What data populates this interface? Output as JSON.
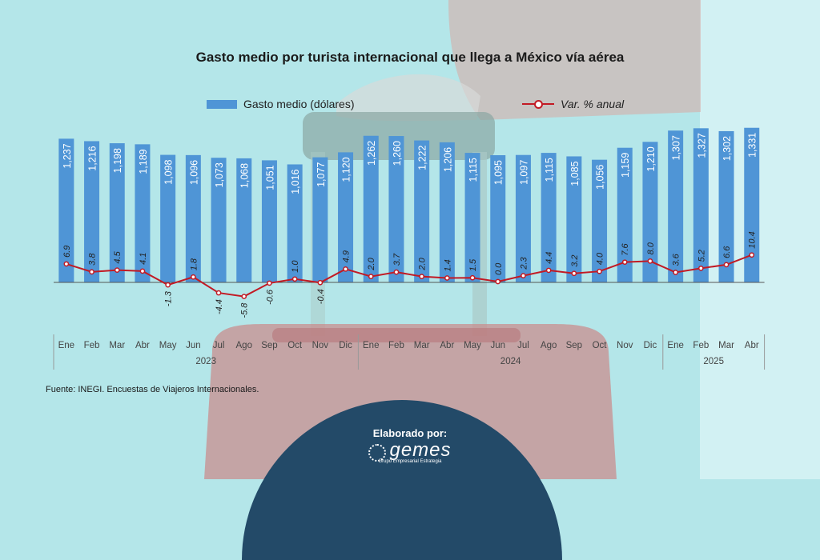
{
  "title": "Gasto medio por turista internacional que llega a México vía aérea",
  "legend": {
    "bars": "Gasto medio (dólares)",
    "line": "Var. % anual"
  },
  "source": "Fuente: INEGI. Encuestas de Viajeros Internacionales.",
  "footer": {
    "elaborado": "Elaborado por:",
    "logo": "gemes",
    "logo_sub": "Grupo Empresarial Estrategia"
  },
  "colors": {
    "bar": "#4f95d6",
    "line": "#c21a24",
    "background": "#b4e6e9",
    "badge": "#234a68"
  },
  "chart_data": {
    "type": "bar",
    "title": "Gasto medio por turista internacional que llega a México vía aérea",
    "categories": [
      "Ene",
      "Feb",
      "Mar",
      "Abr",
      "May",
      "Jun",
      "Jul",
      "Ago",
      "Sep",
      "Oct",
      "Nov",
      "Dic",
      "Ene",
      "Feb",
      "Mar",
      "Abr",
      "May",
      "Jun",
      "Jul",
      "Ago",
      "Sep",
      "Oct",
      "Nov",
      "Dic",
      "Ene",
      "Feb",
      "Mar",
      "Abr"
    ],
    "years": [
      {
        "label": "2023",
        "start": 0,
        "end": 11
      },
      {
        "label": "2024",
        "start": 12,
        "end": 23
      },
      {
        "label": "2025",
        "start": 24,
        "end": 27
      }
    ],
    "series": [
      {
        "name": "Gasto medio (dólares)",
        "type": "bar",
        "values": [
          1237,
          1216,
          1198,
          1189,
          1098,
          1096,
          1073,
          1068,
          1051,
          1016,
          1077,
          1120,
          1262,
          1260,
          1222,
          1206,
          1115,
          1095,
          1097,
          1115,
          1085,
          1056,
          1159,
          1210,
          1307,
          1327,
          1302,
          1331
        ],
        "labels": [
          "1,237",
          "1,216",
          "1,198",
          "1,189",
          "1,098",
          "1,096",
          "1,073",
          "1,068",
          "1,051",
          "1,016",
          "1,077",
          "1,120",
          "1,262",
          "1,260",
          "1,222",
          "1,206",
          "1,115",
          "1,095",
          "1,097",
          "1,115",
          "1,085",
          "1,056",
          "1,159",
          "1,210",
          "1,307",
          "1,327",
          "1,302",
          "1,331"
        ]
      },
      {
        "name": "Var. % anual",
        "type": "line",
        "values": [
          6.9,
          3.8,
          4.5,
          4.1,
          -1.3,
          1.8,
          -4.4,
          -5.8,
          -0.6,
          1.0,
          -0.4,
          4.9,
          2.0,
          3.7,
          2.0,
          1.4,
          1.5,
          0.0,
          2.3,
          4.4,
          3.2,
          4.0,
          7.6,
          8.0,
          3.6,
          5.2,
          6.6,
          10.4
        ],
        "labels": [
          "6.9",
          "3.8",
          "4.5",
          "4.1",
          "-1.3",
          "1.8",
          "-4.4",
          "-5.8",
          "-0.6",
          "1.0",
          "-0.4",
          "4.9",
          "2.0",
          "3.7",
          "2.0",
          "1.4",
          "1.5",
          "0.0",
          "2.3",
          "4.4",
          "3.2",
          "4.0",
          "7.6",
          "8.0",
          "3.6",
          "5.2",
          "6.6",
          "10.4"
        ]
      }
    ],
    "grid": false,
    "legend_position": "top"
  }
}
